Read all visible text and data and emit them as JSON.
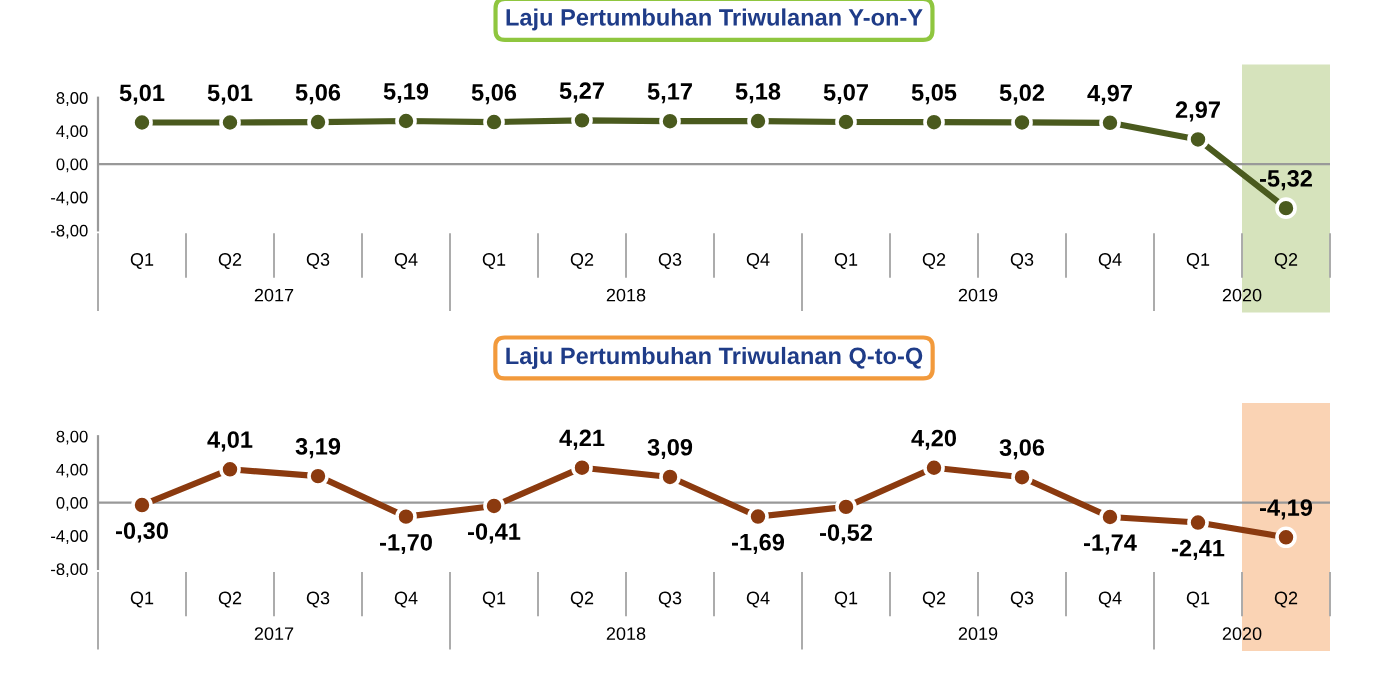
{
  "chart_data": [
    {
      "type": "line",
      "title": "Laju Pertumbuhan Triwulanan Y-on-Y",
      "categories": [
        "Q1",
        "Q2",
        "Q3",
        "Q4",
        "Q1",
        "Q2",
        "Q3",
        "Q4",
        "Q1",
        "Q2",
        "Q3",
        "Q4",
        "Q1",
        "Q2"
      ],
      "series": [
        {
          "color": "#4a5a1e",
          "values": [
            5.01,
            5.01,
            5.06,
            5.19,
            5.06,
            5.27,
            5.17,
            5.18,
            5.07,
            5.05,
            5.02,
            4.97,
            2.97,
            -5.32
          ],
          "value_labels": [
            "5,01",
            "5,01",
            "5,06",
            "5,19",
            "5,06",
            "5,27",
            "5,17",
            "5,18",
            "5,07",
            "5,05",
            "5,02",
            "4,97",
            "2,97",
            "-5,32"
          ]
        }
      ],
      "ylim": [
        -8,
        8
      ],
      "yticks": [
        {
          "value": -8,
          "label": "-8,00"
        },
        {
          "value": -4,
          "label": "-4,00"
        },
        {
          "value": 0,
          "label": "0,00"
        },
        {
          "value": 4,
          "label": "4,00"
        },
        {
          "value": 8,
          "label": "8,00"
        }
      ],
      "marker": "circle",
      "line_style": "solid",
      "grid": false,
      "legend": false,
      "ref_lines": [
        {
          "axis": "y",
          "value": 0,
          "color": "#999999"
        }
      ],
      "annotations": [
        "2017",
        "2018",
        "2019",
        "2020"
      ]
    },
    {
      "type": "line",
      "title": "Laju Pertumbuhan Triwulanan Q-to-Q",
      "categories": [
        "Q1",
        "Q2",
        "Q3",
        "Q4",
        "Q1",
        "Q2",
        "Q3",
        "Q4",
        "Q1",
        "Q2",
        "Q3",
        "Q4",
        "Q1",
        "Q2"
      ],
      "series": [
        {
          "color": "#8b3a0f",
          "values": [
            -0.3,
            4.01,
            3.19,
            -1.7,
            -0.41,
            4.21,
            3.09,
            -1.69,
            -0.52,
            4.2,
            3.06,
            -1.74,
            -2.41,
            -4.19
          ],
          "value_labels": [
            "-0,30",
            "4,01",
            "3,19",
            "-1,70",
            "-0,41",
            "4,21",
            "3,09",
            "-1,69",
            "-0,52",
            "4,20",
            "3,06",
            "-1,74",
            "-2,41",
            "-4,19"
          ]
        }
      ],
      "ylim": [
        -8,
        8
      ],
      "yticks": [
        {
          "value": -8,
          "label": "-8,00"
        },
        {
          "value": -4,
          "label": "-4,00"
        },
        {
          "value": 0,
          "label": "0,00"
        },
        {
          "value": 4,
          "label": "4,00"
        },
        {
          "value": 8,
          "label": "8,00"
        }
      ],
      "marker": "circle",
      "line_style": "solid",
      "grid": false,
      "legend": false,
      "ref_lines": [
        {
          "axis": "y",
          "value": 0,
          "color": "#999999"
        }
      ],
      "annotations": [
        "2017",
        "2018",
        "2019",
        "2020"
      ]
    }
  ]
}
